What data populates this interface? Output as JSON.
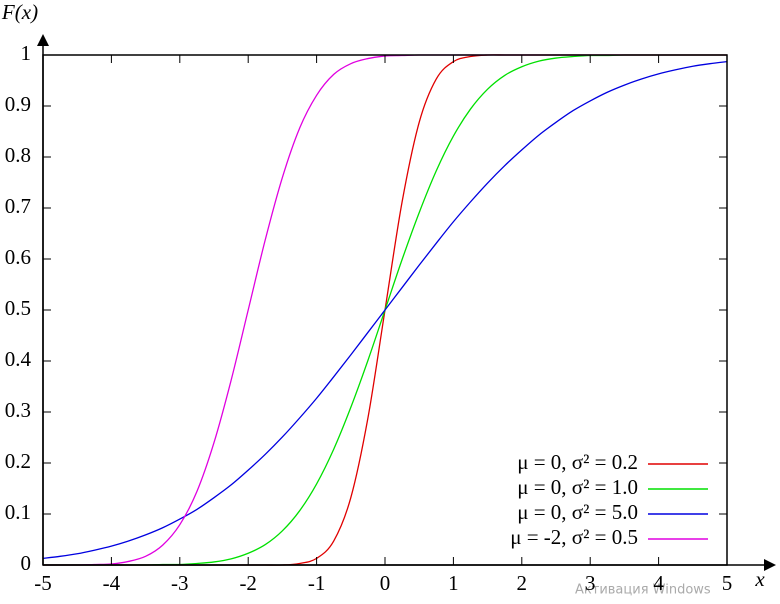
{
  "chart_data": {
    "type": "line",
    "y_label": "F(x)",
    "x_label": "x",
    "x": [
      -5,
      -4.75,
      -4.5,
      -4.25,
      -4,
      -3.75,
      -3.5,
      -3.25,
      -3,
      -2.75,
      -2.5,
      -2.25,
      -2,
      -1.75,
      -1.5,
      -1.25,
      -1,
      -0.75,
      -0.5,
      -0.25,
      0,
      0.25,
      0.5,
      0.75,
      1,
      1.25,
      1.5,
      1.75,
      2,
      2.25,
      2.5,
      2.75,
      3,
      3.25,
      3.5,
      3.75,
      4,
      4.25,
      4.5,
      4.75,
      5
    ],
    "series": [
      {
        "name": "μ =  0, σ² = 0.2",
        "color": "#e00000",
        "values": [
          0,
          0,
          0,
          0,
          0,
          0,
          0,
          0,
          0,
          0,
          0,
          0,
          0,
          0,
          0,
          0.003,
          0.013,
          0.047,
          0.132,
          0.288,
          0.5,
          0.712,
          0.868,
          0.953,
          0.987,
          0.997,
          1,
          1,
          1,
          1,
          1,
          1,
          1,
          1,
          1,
          1,
          1,
          1,
          1,
          1,
          1
        ]
      },
      {
        "name": "μ =  0, σ² = 1.0",
        "color": "#00e000",
        "values": [
          0,
          0,
          0,
          0,
          0,
          0,
          0,
          0.001,
          0.001,
          0.003,
          0.006,
          0.012,
          0.023,
          0.04,
          0.067,
          0.106,
          0.159,
          0.227,
          0.309,
          0.401,
          0.5,
          0.599,
          0.691,
          0.773,
          0.841,
          0.894,
          0.933,
          0.96,
          0.977,
          0.988,
          0.994,
          0.997,
          0.999,
          0.999,
          1,
          1,
          1,
          1,
          1,
          1,
          1
        ]
      },
      {
        "name": "μ =  0, σ² = 5.0",
        "color": "#0000e0",
        "values": [
          0.013,
          0.017,
          0.022,
          0.029,
          0.037,
          0.047,
          0.059,
          0.073,
          0.09,
          0.109,
          0.132,
          0.157,
          0.186,
          0.217,
          0.251,
          0.288,
          0.327,
          0.369,
          0.412,
          0.456,
          0.5,
          0.544,
          0.588,
          0.631,
          0.673,
          0.712,
          0.749,
          0.783,
          0.814,
          0.843,
          0.868,
          0.891,
          0.91,
          0.927,
          0.941,
          0.953,
          0.963,
          0.971,
          0.978,
          0.983,
          0.987
        ]
      },
      {
        "name": "μ = -2, σ² = 0.5",
        "color": "#e000e0",
        "values": [
          0,
          0,
          0,
          0.001,
          0.002,
          0.007,
          0.017,
          0.039,
          0.079,
          0.144,
          0.24,
          0.362,
          0.5,
          0.638,
          0.76,
          0.856,
          0.921,
          0.962,
          0.983,
          0.993,
          0.998,
          0.999,
          1,
          1,
          1,
          1,
          1,
          1,
          1,
          1,
          1,
          1,
          1,
          1,
          1,
          1,
          1,
          1,
          1,
          1,
          1
        ]
      }
    ],
    "xlim": [
      -5,
      5
    ],
    "ylim": [
      0,
      1
    ],
    "xticks": [
      -5,
      -4,
      -3,
      -2,
      -1,
      0,
      1,
      2,
      3,
      4,
      5
    ],
    "yticks": [
      0,
      0.1,
      0.2,
      0.3,
      0.4,
      0.5,
      0.6,
      0.7,
      0.8,
      0.9,
      1
    ],
    "grid": false,
    "legend": "lower right",
    "watermark": "Активация Windows"
  }
}
